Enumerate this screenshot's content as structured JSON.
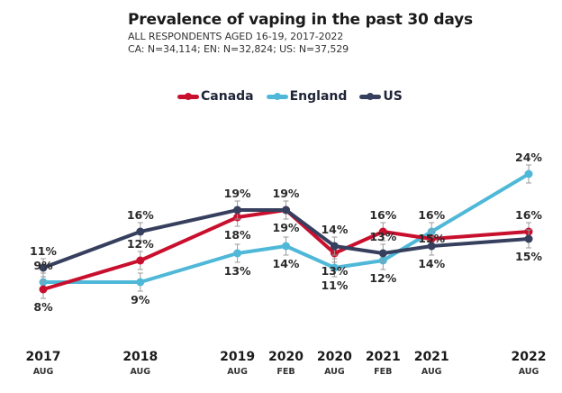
{
  "chart_data": {
    "type": "line",
    "title": "Prevalence of vaping in the past 30 days",
    "subtitle_lines": [
      "ALL RESPONDENTS AGED 16-19, 2017-2022",
      "CA: N=34,114; EN: N=32,824; US: N=37,529"
    ],
    "xlabel": "",
    "ylabel": "",
    "ylim": [
      0,
      25
    ],
    "grid": false,
    "legend_position": "top-center",
    "x_categories": [
      {
        "year": "2017",
        "month": "AUG"
      },
      {
        "year": "2018",
        "month": "AUG"
      },
      {
        "year": "2019",
        "month": "AUG"
      },
      {
        "year": "2020",
        "month": "FEB"
      },
      {
        "year": "2020",
        "month": "AUG"
      },
      {
        "year": "2021",
        "month": "FEB"
      },
      {
        "year": "2021",
        "month": "AUG"
      },
      {
        "year": "2022",
        "month": "AUG"
      }
    ],
    "x_time_index": [
      2017.6,
      2018.6,
      2019.6,
      2020.1,
      2020.6,
      2021.1,
      2021.6,
      2022.6
    ],
    "series": [
      {
        "name": "Canada",
        "color": "#c8102e",
        "values": [
          8,
          12,
          18,
          19,
          13,
          16,
          15,
          16
        ]
      },
      {
        "name": "England",
        "color": "#4fb8d8",
        "values": [
          9,
          9,
          13,
          14,
          11,
          12,
          16,
          24
        ]
      },
      {
        "name": "US",
        "color": "#36405e",
        "values": [
          11,
          16,
          19,
          19,
          14,
          13,
          14,
          15
        ]
      }
    ],
    "value_suffix": "%"
  }
}
